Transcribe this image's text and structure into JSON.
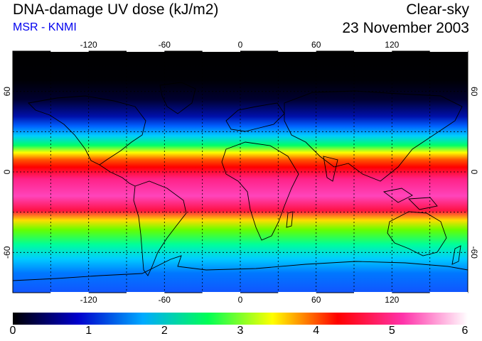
{
  "header": {
    "title": "DNA-damage UV dose (kJ/m2)",
    "source": "MSR - KNMI",
    "sky_condition": "Clear-sky",
    "date": "23 November 2003"
  },
  "map": {
    "projection": "equirectangular",
    "lon_ticks": [
      "-120",
      "-60",
      "0",
      "60",
      "120"
    ],
    "lat_ticks": [
      "60",
      "0",
      "-60"
    ],
    "graticule": "dashed every 30 degrees"
  },
  "colorbar": {
    "min": 0,
    "max": 6,
    "tick_labels": [
      "0",
      "1",
      "2",
      "3",
      "4",
      "5",
      "6"
    ],
    "colors": [
      "#000000",
      "#0000cc",
      "#00aaff",
      "#00ff55",
      "#ffff00",
      "#ff0000",
      "#ff33aa",
      "#ffffff"
    ]
  }
}
